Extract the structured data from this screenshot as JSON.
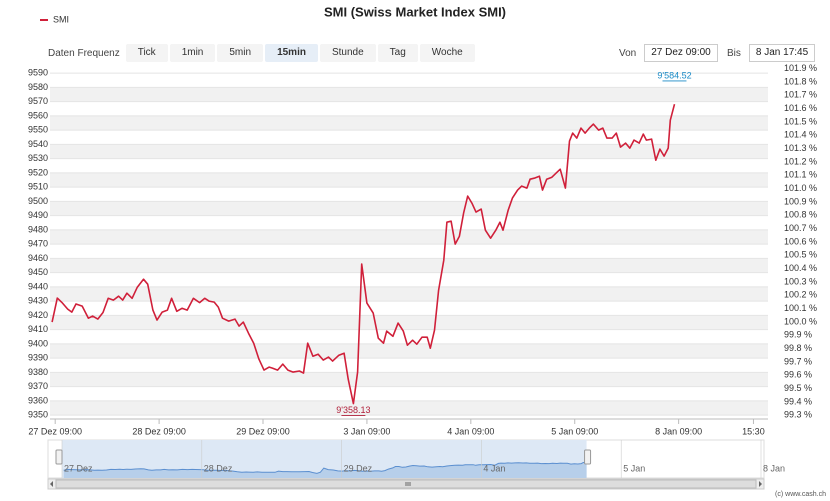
{
  "chart_data": {
    "type": "line",
    "title": "SMI (Swiss Market Index SMI)",
    "series": [
      {
        "name": "SMI",
        "color": "#d0203a",
        "x": [
          -0.03,
          0.02,
          0.07,
          0.12,
          0.16,
          0.2,
          0.26,
          0.32,
          0.36,
          0.41,
          0.46,
          0.51,
          0.56,
          0.61,
          0.65,
          0.69,
          0.74,
          0.79,
          0.85,
          0.89,
          0.94,
          0.98,
          1.03,
          1.08,
          1.12,
          1.17,
          1.22,
          1.27,
          1.33,
          1.39,
          1.44,
          1.48,
          1.53,
          1.57,
          1.61,
          1.67,
          1.73,
          1.77,
          1.81,
          1.86,
          1.91,
          1.96,
          2.01,
          2.06,
          2.09,
          2.14,
          2.19,
          2.24,
          2.29,
          2.35,
          2.39,
          2.43,
          2.48,
          2.53,
          2.58,
          2.63,
          2.67,
          2.73,
          2.78,
          2.82,
          2.87,
          2.91,
          2.95,
          3.0,
          3.06,
          3.11,
          3.16,
          3.19,
          3.25,
          3.3,
          3.35,
          3.39,
          3.44,
          3.48,
          3.53,
          3.58,
          3.61,
          3.65,
          3.69,
          3.74,
          3.77,
          3.81,
          3.85,
          3.89,
          3.93,
          3.97,
          4.01,
          4.05,
          4.1,
          4.14,
          4.19,
          4.24,
          4.28,
          4.31,
          4.36,
          4.4,
          4.45,
          4.49,
          4.54,
          4.57,
          4.61,
          4.66,
          4.69,
          4.73,
          4.78,
          4.82,
          4.86,
          4.91,
          4.95,
          4.98,
          5.02,
          5.06,
          5.1,
          5.14,
          5.18,
          5.23,
          5.27,
          5.31,
          5.36,
          5.4,
          5.44,
          5.49,
          5.53,
          5.57,
          5.62,
          5.66,
          5.69,
          5.74,
          5.78,
          5.82,
          5.86,
          5.9,
          5.92,
          5.96
        ],
        "values": [
          9415.3,
          9432.1,
          9428.6,
          9424.4,
          9422.3,
          9428,
          9426.5,
          9418,
          9419.5,
          9417.4,
          9422,
          9432,
          9430.7,
          9433.5,
          9430.7,
          9435.6,
          9432,
          9439.8,
          9445.4,
          9441.9,
          9423.7,
          9416.7,
          9422.3,
          9423.7,
          9432,
          9422.9,
          9425,
          9423.7,
          9432,
          9429,
          9432,
          9430,
          9429.3,
          9425.8,
          9418,
          9416,
          9417.4,
          9412.5,
          9415.3,
          9407.5,
          9400.5,
          9389.3,
          9381.6,
          9383.7,
          9383,
          9381.6,
          9385.8,
          9381.6,
          9380.2,
          9381,
          9379.5,
          9400.5,
          9391.4,
          9392.8,
          9388.6,
          9390.7,
          9387.9,
          9392.1,
          9393.5,
          9375.3,
          9358.13,
          9380.2,
          9456,
          9428.6,
          9421.6,
          9404,
          9400.5,
          9409,
          9405.3,
          9414.6,
          9409,
          9399.1,
          9402.6,
          9399.8,
          9404.7,
          9404.7,
          9397,
          9409.6,
          9437.7,
          9458.8,
          9485.4,
          9486.1,
          9470,
          9475.6,
          9491.8,
          9503.7,
          9498.8,
          9492.5,
          9494.6,
          9479.8,
          9474.2,
          9479.8,
          9485.4,
          9479.8,
          9493.9,
          9502.3,
          9507.9,
          9510.7,
          9509.3,
          9515.6,
          9516.3,
          9517.7,
          9507.9,
          9515.6,
          9517,
          9519.8,
          9522.6,
          9509.3,
          9542.3,
          9547.9,
          9544.4,
          9551.4,
          9547.9,
          9551.4,
          9554.2,
          9550,
          9551.4,
          9544.4,
          9544.4,
          9547.9,
          9538.1,
          9540.9,
          9537.4,
          9543,
          9540.9,
          9547.2,
          9543,
          9543.7,
          9528.9,
          9536.7,
          9531.8,
          9537.4,
          9557,
          9568.2
        ]
      }
    ],
    "annotations": [
      {
        "label": "9'584.52",
        "value": 9584.52,
        "x": 5.96
      },
      {
        "label": "9'358.13",
        "value": 9358.13,
        "x": 2.87
      }
    ],
    "xlim": [
      -0.05,
      6.86
    ],
    "xticks": [
      {
        "value": 0,
        "label": "27 Dez 09:00"
      },
      {
        "value": 1,
        "label": "28 Dez 09:00"
      },
      {
        "value": 2,
        "label": "29 Dez 09:00"
      },
      {
        "value": 3,
        "label": "3 Jan 09:00"
      },
      {
        "value": 4,
        "label": "4 Jan 09:00"
      },
      {
        "value": 5,
        "label": "5 Jan 09:00"
      },
      {
        "value": 6,
        "label": "8 Jan 09:00"
      },
      {
        "value": 6.72,
        "label": "15:30"
      }
    ],
    "ylim": [
      9348,
      9595
    ],
    "yticks": [
      9350,
      9360,
      9370,
      9380,
      9390,
      9400,
      9410,
      9420,
      9430,
      9440,
      9450,
      9460,
      9470,
      9480,
      9490,
      9500,
      9510,
      9520,
      9530,
      9540,
      9550,
      9560,
      9570,
      9580,
      9590
    ],
    "y2lim": [
      99.28,
      101.92
    ],
    "y2ticks": [
      {
        "value": 99.3,
        "label": "99.3 %"
      },
      {
        "value": 99.4,
        "label": "99.4 %"
      },
      {
        "value": 99.5,
        "label": "99.5 %"
      },
      {
        "value": 99.6,
        "label": "99.6 %"
      },
      {
        "value": 99.7,
        "label": "99.7 %"
      },
      {
        "value": 99.8,
        "label": "99.8 %"
      },
      {
        "value": 99.9,
        "label": "99.9 %"
      },
      {
        "value": 100.0,
        "label": "100.0 %"
      },
      {
        "value": 100.1,
        "label": "100.1 %"
      },
      {
        "value": 100.2,
        "label": "100.2 %"
      },
      {
        "value": 100.3,
        "label": "100.3 %"
      },
      {
        "value": 100.4,
        "label": "100.4 %"
      },
      {
        "value": 100.5,
        "label": "100.5 %"
      },
      {
        "value": 100.6,
        "label": "100.6 %"
      },
      {
        "value": 100.7,
        "label": "100.7 %"
      },
      {
        "value": 100.8,
        "label": "100.8 %"
      },
      {
        "value": 100.9,
        "label": "100.9 %"
      },
      {
        "value": 101.0,
        "label": "101.0 %"
      },
      {
        "value": 101.1,
        "label": "101.1 %"
      },
      {
        "value": 101.2,
        "label": "101.2 %"
      },
      {
        "value": 101.3,
        "label": "101.3 %"
      },
      {
        "value": 101.4,
        "label": "101.4 %"
      },
      {
        "value": 101.5,
        "label": "101.5 %"
      },
      {
        "value": 101.6,
        "label": "101.6 %"
      },
      {
        "value": 101.7,
        "label": "101.7 %"
      },
      {
        "value": 101.8,
        "label": "101.8 %"
      },
      {
        "value": 101.9,
        "label": "101.9 %"
      }
    ],
    "grid": true,
    "legend": "top-left",
    "navigator": {
      "labels": [
        "27 Dez",
        "28 Dez",
        "29 Dez",
        "4 Jan",
        "5 Jan",
        "8 Jan"
      ]
    }
  },
  "toolbar": {
    "label": "Daten Frequenz",
    "buttons": [
      "Tick",
      "1min",
      "5min",
      "15min",
      "Stunde",
      "Tag",
      "Woche"
    ],
    "selected": 3,
    "from_label": "Von",
    "from": "27 Dez 09:00",
    "to_label": "Bis",
    "to": "8 Jan 17:45"
  },
  "footer": "(c) www.cash.ch"
}
